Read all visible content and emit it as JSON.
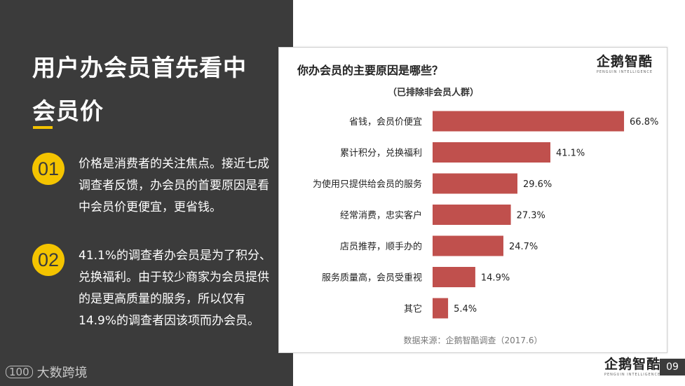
{
  "slide": {
    "headline_line1": "用户办会员首先看中",
    "headline_line2": "会员价",
    "points": [
      {
        "number": "01",
        "text": "价格是消费者的关注焦点。接近七成调查者反馈，办会员的首要原因是看中会员价更便宜，更省钱。"
      },
      {
        "number": "02",
        "text": "41.1%的调查者办会员是为了积分、兑换福利。由于较少商家为会员提供的是更高质量的服务，所以仅有14.9%的调查者因该项而办会员。"
      }
    ],
    "footer_logo": "大数跨境",
    "footer_logo_mark": "100",
    "page_number": "09",
    "brand_name": "企鹅智酷",
    "brand_sub": "PENGUIN INTELLIGENCE"
  },
  "chart_data": {
    "type": "bar",
    "orientation": "horizontal",
    "title": "你办会员的主要原因是哪些？",
    "subtitle": "（已排除非会员人群）",
    "source": "数据来源：企鹅智酷调查（2017.6）",
    "categories": [
      "省钱，会员价便宜",
      "累计积分，兑换福利",
      "为使用只提供给会员的服务",
      "经常消费，忠实客户",
      "店员推荐，顺手办的",
      "服务质量高，会员受重视",
      "其它"
    ],
    "values": [
      66.8,
      41.1,
      29.6,
      27.3,
      24.7,
      14.9,
      5.4
    ],
    "value_labels": [
      "66.8%",
      "41.1%",
      "29.6%",
      "27.3%",
      "24.7%",
      "14.9%",
      "5.4%"
    ],
    "unit": "%",
    "xlim": [
      0,
      80
    ],
    "bar_color": "#c0504d",
    "grid": false,
    "legend": "none"
  },
  "colors": {
    "panel_dark": "#3b3b3b",
    "accent_yellow": "#f4c400",
    "bar_red": "#c0504d"
  }
}
